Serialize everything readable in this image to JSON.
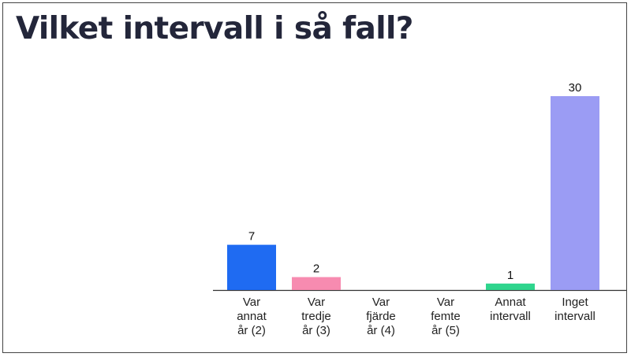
{
  "title": "Vilket intervall i så fall?",
  "chart_data": {
    "type": "bar",
    "title": "Vilket intervall i så fall?",
    "categories": [
      [
        "Var",
        "annat",
        "år (2)"
      ],
      [
        "Var",
        "tredje",
        "år (3)"
      ],
      [
        "Var",
        "fjärde",
        "år (4)"
      ],
      [
        "Var",
        "femte",
        "år (5)"
      ],
      [
        "Annat",
        "intervall"
      ],
      [
        "Inget",
        "intervall"
      ]
    ],
    "values": [
      7,
      2,
      0,
      0,
      1,
      30
    ],
    "value_labels": [
      "7",
      "2",
      "",
      "",
      "1",
      "30"
    ],
    "colors": [
      "#1f6bf2",
      "#f78bb0",
      "#a8a3ee",
      "#f2a35e",
      "#2fd58d",
      "#9b9cf4"
    ],
    "ylim": [
      0,
      30
    ],
    "grid": false,
    "legend": "none"
  }
}
